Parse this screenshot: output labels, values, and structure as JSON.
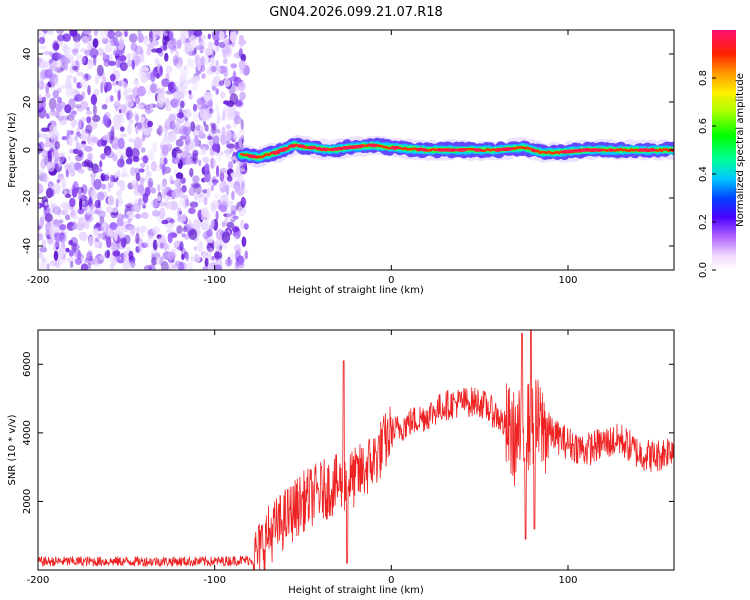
{
  "title": "GN04.2026.099.21.07.R18",
  "chart_data": [
    {
      "type": "heatmap",
      "name": "spectrogram",
      "xlabel": "Height of straight line (km)",
      "ylabel": "Frequency (Hz)",
      "xlim": [
        -200,
        160
      ],
      "ylim": [
        -50,
        50
      ],
      "x_ticks": [
        -200,
        -100,
        0,
        100
      ],
      "y_ticks": [
        -40,
        -20,
        0,
        20,
        40
      ],
      "noise_region_x": [
        -200,
        -82
      ],
      "track": [
        {
          "x": -85,
          "f": -2
        },
        {
          "x": -75,
          "f": -3
        },
        {
          "x": -65,
          "f": -1
        },
        {
          "x": -55,
          "f": 2
        },
        {
          "x": -45,
          "f": 1
        },
        {
          "x": -35,
          "f": 0
        },
        {
          "x": -25,
          "f": 1
        },
        {
          "x": -10,
          "f": 2
        },
        {
          "x": 0,
          "f": 1
        },
        {
          "x": 20,
          "f": 0
        },
        {
          "x": 45,
          "f": 0
        },
        {
          "x": 60,
          "f": 0
        },
        {
          "x": 75,
          "f": 1
        },
        {
          "x": 85,
          "f": -1
        },
        {
          "x": 95,
          "f": -1
        },
        {
          "x": 110,
          "f": 0
        },
        {
          "x": 160,
          "f": 0
        }
      ],
      "colorbar": {
        "label": "Normalized spectral amplitude",
        "ticks": [
          0.0,
          0.2,
          0.4,
          0.6,
          0.8
        ],
        "tick_labels": [
          "0.0",
          "0.2",
          "0.4",
          "0.6",
          "0.8"
        ],
        "range": [
          0,
          1
        ]
      }
    },
    {
      "type": "line",
      "name": "snr",
      "xlabel": "Height of straight line (km)",
      "ylabel": "SNR (10 * v/v)",
      "xlim": [
        -200,
        160
      ],
      "ylim": [
        0,
        7000
      ],
      "x_ticks": [
        -200,
        -100,
        0,
        100
      ],
      "y_ticks": [
        2000,
        4000,
        6000
      ],
      "color": "#ee2222",
      "envelope": [
        {
          "x": -200,
          "y": 250
        },
        {
          "x": -150,
          "y": 250
        },
        {
          "x": -100,
          "y": 250
        },
        {
          "x": -78,
          "y": 300
        },
        {
          "x": -70,
          "y": 1000
        },
        {
          "x": -60,
          "y": 1500
        },
        {
          "x": -50,
          "y": 2000
        },
        {
          "x": -40,
          "y": 2300
        },
        {
          "x": -30,
          "y": 2500
        },
        {
          "x": -20,
          "y": 2700
        },
        {
          "x": -10,
          "y": 3200
        },
        {
          "x": 0,
          "y": 4000
        },
        {
          "x": 10,
          "y": 4300
        },
        {
          "x": 20,
          "y": 4500
        },
        {
          "x": 30,
          "y": 4800
        },
        {
          "x": 40,
          "y": 4900
        },
        {
          "x": 50,
          "y": 4900
        },
        {
          "x": 60,
          "y": 4500
        },
        {
          "x": 70,
          "y": 3800
        },
        {
          "x": 80,
          "y": 4300
        },
        {
          "x": 90,
          "y": 4000
        },
        {
          "x": 100,
          "y": 3700
        },
        {
          "x": 110,
          "y": 3500
        },
        {
          "x": 120,
          "y": 3700
        },
        {
          "x": 130,
          "y": 3800
        },
        {
          "x": 140,
          "y": 3400
        },
        {
          "x": 150,
          "y": 3300
        },
        {
          "x": 160,
          "y": 3600
        }
      ],
      "spikes": [
        {
          "x": -27,
          "y": 6100
        },
        {
          "x": -25,
          "y": 200
        },
        {
          "x": 74,
          "y": 6900
        },
        {
          "x": 76,
          "y": 900
        },
        {
          "x": 79,
          "y": 7000
        },
        {
          "x": 81,
          "y": 1200
        }
      ]
    }
  ]
}
